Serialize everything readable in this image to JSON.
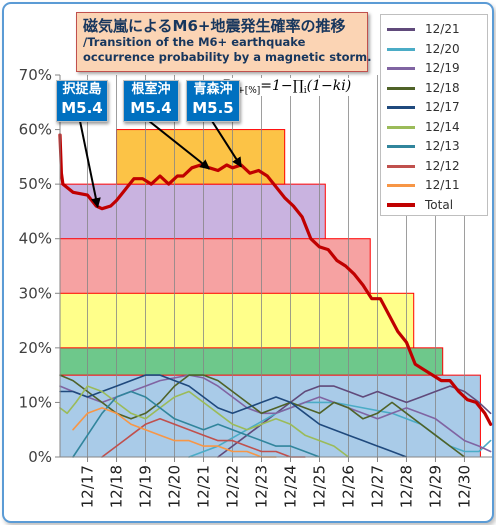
{
  "title": {
    "jp": "磁気嵐によるM6+地震発生確率の推移",
    "en_line1": "/Transition of the M6+ earthquake",
    "en_line2": "occurrence probability by a magnetic storm."
  },
  "formula": {
    "left": "P",
    "sub": "6+[%]",
    "right": "=1−∏",
    "sub2": "i",
    "tail": "(1−ki)"
  },
  "annotations": [
    {
      "place": "択捉島",
      "magnitude": "M5.4"
    },
    {
      "place": "根室沖",
      "magnitude": "M5.4"
    },
    {
      "place": "青森沖",
      "magnitude": "M5.5"
    }
  ],
  "colors": {
    "total": "#c00000",
    "band_border": "#ff0000",
    "frame": "#5b9bd5",
    "annotation": "#0070c0",
    "title_box": "#fbd4b4"
  },
  "chart_data": {
    "type": "line",
    "y_ticks": [
      "0%",
      "10%",
      "20%",
      "30%",
      "40%",
      "50%",
      "60%",
      "70%"
    ],
    "x_ticks": [
      "12/17",
      "12/18",
      "12/19",
      "12/20",
      "12/21",
      "12/22",
      "12/23",
      "12/24",
      "12/25",
      "12/26",
      "12/27",
      "12/28",
      "12/29",
      "12/30"
    ],
    "ylim": [
      0,
      70
    ],
    "xlim": [
      16.0,
      30.9
    ],
    "grid": "vertical",
    "legend_position": "right",
    "bands": [
      {
        "x_from": 16.05,
        "x_to": 25.2,
        "y_from": 0,
        "y_to": 50,
        "color": "#c9b3e0"
      },
      {
        "x_from": 18.0,
        "x_to": 23.8,
        "y_from": 50,
        "y_to": 60,
        "color": "#fcc346"
      },
      {
        "x_from": 16.05,
        "x_to": 26.75,
        "y_from": 0,
        "y_to": 40,
        "color": "#f6a2a2"
      },
      {
        "x_from": 16.05,
        "x_to": 28.25,
        "y_from": 0,
        "y_to": 30,
        "color": "#ffff8a"
      },
      {
        "x_from": 16.05,
        "x_to": 29.25,
        "y_from": 0,
        "y_to": 20,
        "color": "#6ec88b"
      },
      {
        "x_from": 16.05,
        "x_to": 30.55,
        "y_from": 0,
        "y_to": 15,
        "color": "#a9cbe8"
      }
    ],
    "series": [
      {
        "name": "Total",
        "color": "#c00000",
        "width": 3.2,
        "x": [
          16.0,
          16.1,
          16.15,
          16.5,
          17.0,
          17.3,
          17.5,
          17.8,
          18.0,
          18.3,
          18.6,
          18.9,
          19.2,
          19.5,
          19.8,
          20.1,
          20.3,
          20.6,
          20.9,
          21.2,
          21.5,
          21.8,
          22.0,
          22.3,
          22.6,
          22.9,
          23.2,
          23.5,
          23.8,
          24.1,
          24.4,
          24.7,
          25.0,
          25.3,
          25.6,
          25.9,
          26.2,
          26.5,
          26.8,
          27.1,
          27.4,
          27.7,
          28.0,
          28.3,
          28.6,
          28.9,
          29.2,
          29.5,
          29.8,
          30.1,
          30.4,
          30.7,
          30.9
        ],
        "y": [
          59,
          52,
          50,
          48.5,
          48,
          46,
          45.5,
          46,
          47,
          49,
          51,
          51,
          50,
          51.5,
          50,
          51.5,
          51.5,
          53,
          53.5,
          53,
          52.5,
          53.5,
          53,
          53.5,
          52,
          52.5,
          51.5,
          49.5,
          47.5,
          46,
          44,
          40,
          38.5,
          38,
          36,
          35,
          33.5,
          31.5,
          29,
          29,
          26,
          23,
          21,
          17,
          16,
          15,
          14,
          14,
          12,
          10.5,
          10,
          8,
          6
        ]
      },
      {
        "name": "12/21",
        "color": "#604a7b",
        "width": 1.6,
        "x": [
          21.5,
          22.0,
          22.5,
          23.0,
          23.5,
          24.0,
          24.5,
          25.0,
          25.5,
          26.0,
          26.5,
          27.0,
          27.5,
          28.0,
          28.5,
          29.0,
          29.5,
          30.0,
          30.5,
          30.9
        ],
        "y": [
          0,
          2,
          4,
          6,
          8,
          10,
          12,
          13,
          13,
          12,
          11,
          12,
          11,
          10,
          11,
          12,
          13,
          12,
          10,
          8
        ]
      },
      {
        "name": "12/20",
        "color": "#4bacc6",
        "width": 1.6,
        "x": [
          20.5,
          21.5,
          22.5,
          23.5,
          24.5,
          25.5,
          26.5,
          27.5,
          28.5,
          29.0,
          29.5,
          30.0,
          30.5,
          30.9
        ],
        "y": [
          0,
          2,
          5,
          8,
          10,
          10,
          9,
          8,
          6,
          4,
          2,
          1,
          1,
          3
        ]
      },
      {
        "name": "12/19",
        "color": "#8064a2",
        "width": 1.6,
        "x": [
          16.0,
          16.5,
          17.0,
          17.5,
          18.0,
          18.5,
          19.0,
          19.5,
          20.0,
          20.5,
          21.0,
          21.5,
          22.0,
          22.5,
          23.0,
          23.5,
          24.0,
          24.5,
          25.0,
          25.5,
          26.0,
          26.5,
          27.0,
          27.5,
          28.0,
          28.5,
          29.0,
          29.5,
          30.0,
          30.5,
          30.9
        ],
        "y": [
          13,
          12,
          11,
          10,
          11,
          12,
          13,
          14,
          14.5,
          15,
          14.5,
          13,
          11,
          9,
          8,
          8,
          9,
          10,
          11,
          10,
          9,
          8,
          7,
          8,
          9,
          8,
          7,
          5,
          3,
          2,
          1
        ]
      },
      {
        "name": "12/18",
        "color": "#4f6228",
        "width": 1.6,
        "x": [
          16.0,
          16.5,
          17.0,
          17.5,
          18.0,
          18.5,
          19.0,
          19.5,
          20.0,
          20.5,
          21.0,
          21.5,
          22.0,
          22.5,
          23.0,
          23.5,
          24.0,
          24.5,
          25.0,
          25.5,
          26.0,
          26.5,
          27.0,
          27.5,
          28.0,
          28.5,
          29.0,
          29.5,
          30.0
        ],
        "y": [
          15,
          14,
          12,
          10,
          8,
          7,
          8,
          10,
          13,
          15,
          15,
          14,
          12,
          10,
          8,
          9,
          10,
          9,
          8,
          10,
          9,
          7,
          8,
          10,
          8,
          6,
          4,
          2,
          0
        ]
      },
      {
        "name": "12/17",
        "color": "#1f497d",
        "width": 1.6,
        "x": [
          16.0,
          16.5,
          17.0,
          17.5,
          18.0,
          18.5,
          19.0,
          19.5,
          20.0,
          20.5,
          21.0,
          21.5,
          22.0,
          22.5,
          23.0,
          23.5,
          24.0,
          24.5,
          25.0,
          25.5,
          26.0,
          26.5,
          27.0,
          27.5,
          28.0
        ],
        "y": [
          12,
          12,
          11,
          12,
          13,
          14,
          15,
          15,
          14,
          13,
          11,
          9,
          8,
          9,
          10,
          11,
          10,
          8,
          6,
          5,
          4,
          3,
          2,
          1,
          0
        ]
      },
      {
        "name": "12/14",
        "color": "#9bbb59",
        "width": 1.6,
        "x": [
          16.0,
          16.3,
          16.6,
          17.0,
          17.5,
          18.0,
          18.5,
          19.0,
          19.5,
          20.0,
          20.5,
          21.0,
          21.5,
          22.0,
          22.5,
          23.0,
          23.5,
          24.0,
          24.5,
          25.0,
          25.5,
          26.0
        ],
        "y": [
          9,
          8,
          10,
          13,
          12,
          10,
          8,
          7,
          9,
          11,
          12,
          10,
          8,
          6,
          5,
          6,
          7,
          6,
          4,
          3,
          2,
          0
        ]
      },
      {
        "name": "12/13",
        "color": "#31859c",
        "width": 1.6,
        "x": [
          16.5,
          17.0,
          17.5,
          18.0,
          18.5,
          19.0,
          19.5,
          20.0,
          20.5,
          21.0,
          21.5,
          22.0,
          22.5,
          23.0,
          23.5,
          24.0,
          24.5,
          25.0
        ],
        "y": [
          0,
          4,
          8,
          11,
          12,
          11,
          9,
          7,
          6,
          5,
          6,
          5,
          4,
          3,
          2,
          2,
          1,
          0
        ]
      },
      {
        "name": "12/12",
        "color": "#c0504d",
        "width": 1.6,
        "x": [
          17.5,
          18.0,
          18.5,
          19.0,
          19.5,
          20.0,
          20.5,
          21.0,
          21.5,
          22.0,
          22.5,
          23.0,
          23.5,
          24.0,
          24.5
        ],
        "y": [
          0,
          2,
          4,
          6,
          7,
          6,
          5,
          4,
          3,
          3,
          2,
          1,
          1,
          0,
          0
        ]
      },
      {
        "name": "12/11",
        "color": "#f79646",
        "width": 1.6,
        "x": [
          16.5,
          17.0,
          17.5,
          18.0,
          18.5,
          19.0,
          19.5,
          20.0,
          20.5,
          21.0,
          21.5,
          22.0,
          22.5,
          23.0,
          23.5
        ],
        "y": [
          5,
          8,
          9,
          8,
          6,
          5,
          4,
          3,
          3,
          2,
          2,
          1,
          1,
          0,
          0
        ]
      }
    ]
  }
}
